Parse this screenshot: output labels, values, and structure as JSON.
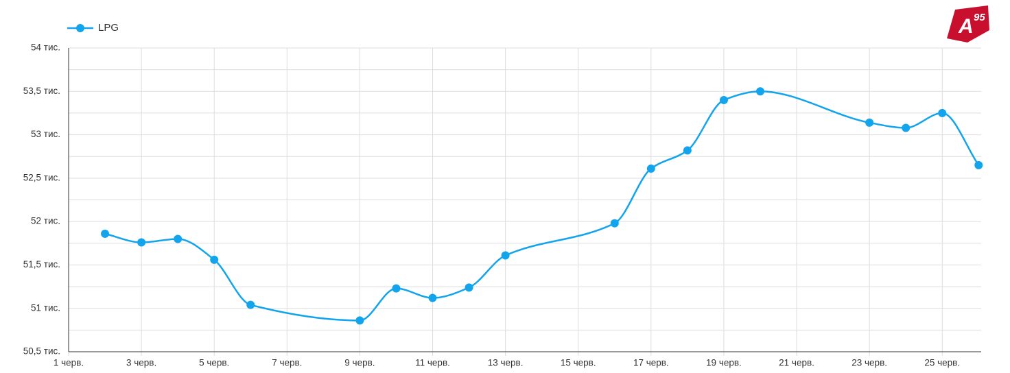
{
  "logo": {
    "letter": "A",
    "number": "95"
  },
  "chart_data": {
    "type": "line",
    "x": [
      2,
      3,
      4,
      5,
      6,
      9,
      10,
      11,
      12,
      13,
      16,
      17,
      18,
      19,
      20,
      23,
      24,
      25,
      26
    ],
    "series": [
      {
        "name": "LPG",
        "color": "#12a4ec",
        "values": [
          51860,
          51760,
          51800,
          51560,
          51040,
          50860,
          51230,
          51120,
          51240,
          51610,
          51980,
          52610,
          52820,
          53400,
          53500,
          53140,
          53080,
          53250,
          52650
        ]
      }
    ],
    "xlim": [
      1,
      26.07
    ],
    "xticks": [
      {
        "value": 1,
        "label": "1 черв."
      },
      {
        "value": 3,
        "label": "3 черв."
      },
      {
        "value": 5,
        "label": "5 черв."
      },
      {
        "value": 7,
        "label": "7 черв."
      },
      {
        "value": 9,
        "label": "9 черв."
      },
      {
        "value": 11,
        "label": "11 черв."
      },
      {
        "value": 13,
        "label": "13 черв."
      },
      {
        "value": 15,
        "label": "15 черв."
      },
      {
        "value": 17,
        "label": "17 черв."
      },
      {
        "value": 19,
        "label": "19 черв."
      },
      {
        "value": 21,
        "label": "21 черв."
      },
      {
        "value": 23,
        "label": "23 черв."
      },
      {
        "value": 25,
        "label": "25 черв."
      }
    ],
    "ylim": [
      50500,
      54000
    ],
    "yticks": [
      {
        "value": 50500,
        "label": "50,5 тис."
      },
      {
        "value": 51000,
        "label": "51 тис."
      },
      {
        "value": 51500,
        "label": "51,5 тис."
      },
      {
        "value": 52000,
        "label": "52 тис."
      },
      {
        "value": 52500,
        "label": "52,5 тис."
      },
      {
        "value": 53000,
        "label": "53 тис."
      },
      {
        "value": 53500,
        "label": "53,5 тис."
      },
      {
        "value": 54000,
        "label": "54 тис."
      }
    ],
    "y_minor_ticks": [
      50750,
      51250,
      51750,
      52250,
      52750,
      53250,
      53750
    ],
    "grid": true,
    "legend": "top-left"
  }
}
